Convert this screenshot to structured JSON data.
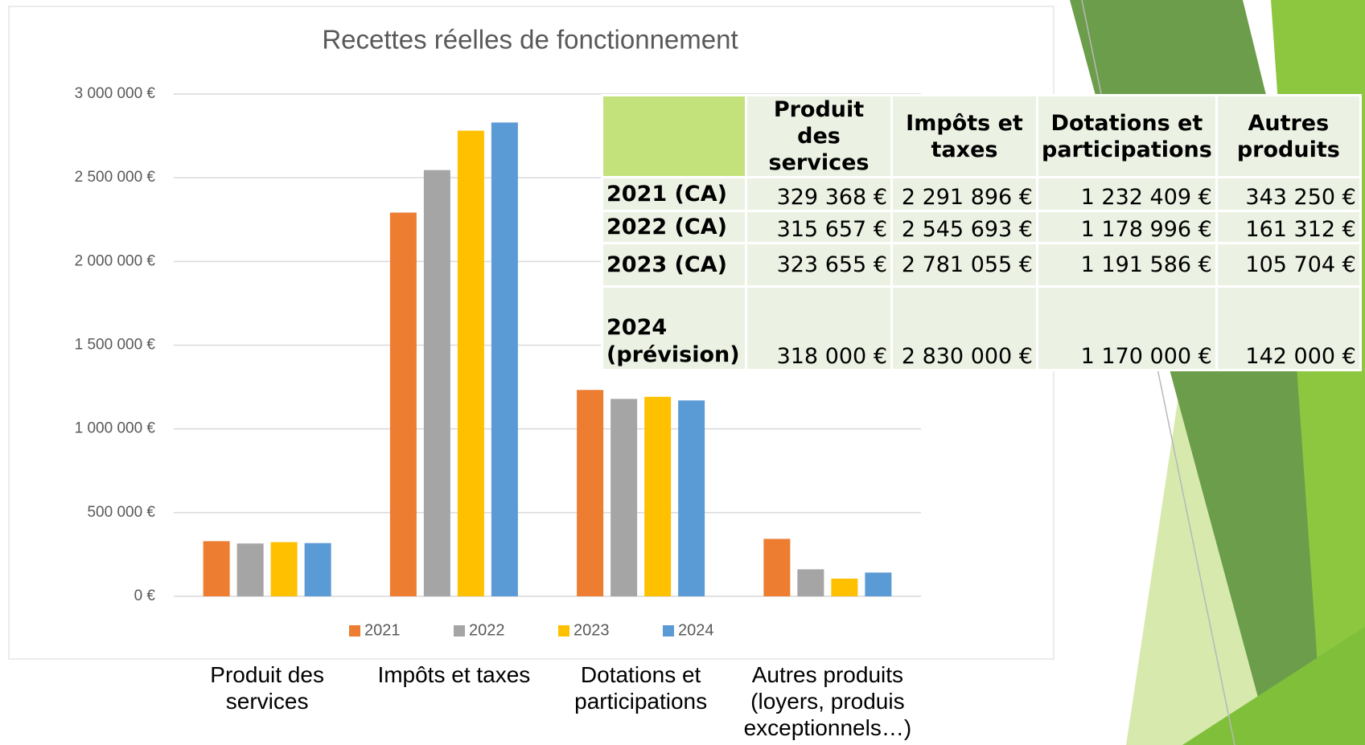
{
  "chart_data": {
    "type": "bar",
    "title": "Recettes réelles de fonctionnement",
    "categories": [
      "Produit des services",
      "Impôts et taxes",
      "Dotations et participations",
      "Autres produits (loyers, produis exceptionnels…)"
    ],
    "series": [
      {
        "name": "2021",
        "color": "#ed7d31",
        "values": [
          329368,
          2291896,
          1232409,
          343250
        ]
      },
      {
        "name": "2022",
        "color": "#a5a5a5",
        "values": [
          315657,
          2545693,
          1178996,
          161312
        ]
      },
      {
        "name": "2023",
        "color": "#ffc000",
        "values": [
          323655,
          2781055,
          1191586,
          105704
        ]
      },
      {
        "name": "2024",
        "color": "#5b9bd5",
        "values": [
          318000,
          2830000,
          1170000,
          142000
        ]
      }
    ],
    "ylim": [
      0,
      3000000
    ],
    "yticks": [
      {
        "value": 0,
        "label": "0 €"
      },
      {
        "value": 500000,
        "label": "500 000 €"
      },
      {
        "value": 1000000,
        "label": "1 000 000 €"
      },
      {
        "value": 1500000,
        "label": "1 500 000 €"
      },
      {
        "value": 2000000,
        "label": "2 000 000 €"
      },
      {
        "value": 2500000,
        "label": "2 500 000 €"
      },
      {
        "value": 3000000,
        "label": "3 000 000 €"
      }
    ],
    "grid": true,
    "legend": "bottom"
  },
  "table": {
    "header": [
      "Produit des services",
      "Impôts et taxes",
      "Dotations et participations",
      "Autres produits"
    ],
    "rows": [
      [
        "2021 (CA)",
        "329 368 €",
        "2 291 896 €",
        "1 232 409 €",
        "343 250 €"
      ],
      [
        "2022 (CA)",
        "315 657 €",
        "2 545 693 €",
        "1 178 996 €",
        "161 312 €"
      ],
      [
        "2023 (CA)",
        "323 655 €",
        "2 781 055 €",
        "1 191 586 €",
        "105 704 €"
      ],
      [
        "2024 (prévision)",
        "318 000 €",
        "2 830 000 €",
        "1 170 000 €",
        "142 000 €"
      ]
    ]
  }
}
